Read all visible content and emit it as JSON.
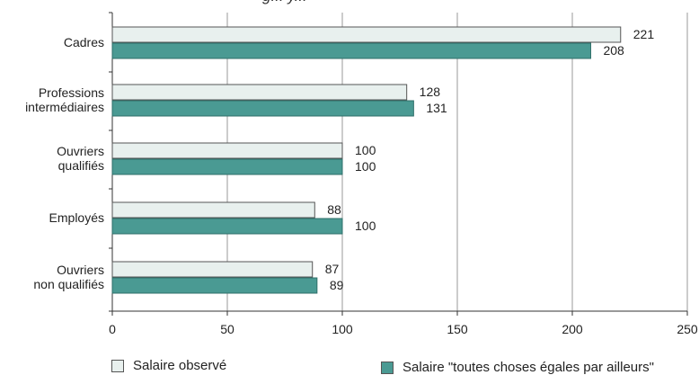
{
  "chart_data": {
    "type": "bar",
    "orientation": "horizontal",
    "categories": [
      [
        "Cadres"
      ],
      [
        "Professions",
        "intermédiaires"
      ],
      [
        "Ouvriers",
        "qualifiés"
      ],
      [
        "Employés"
      ],
      [
        "Ouvriers",
        "non qualifiés"
      ]
    ],
    "series": [
      {
        "name": "Salaire observé",
        "values": [
          221,
          128,
          100,
          88,
          87
        ],
        "color": "#e8f0ee"
      },
      {
        "name": "Salaire \"toutes choses égales par ailleurs\"",
        "values": [
          208,
          131,
          100,
          100,
          89
        ],
        "color": "#4a9a93"
      }
    ],
    "xlim": [
      0,
      250
    ],
    "xticks": [
      0,
      50,
      100,
      150,
      200,
      250
    ],
    "grid": true,
    "legend_position": "bottom"
  }
}
